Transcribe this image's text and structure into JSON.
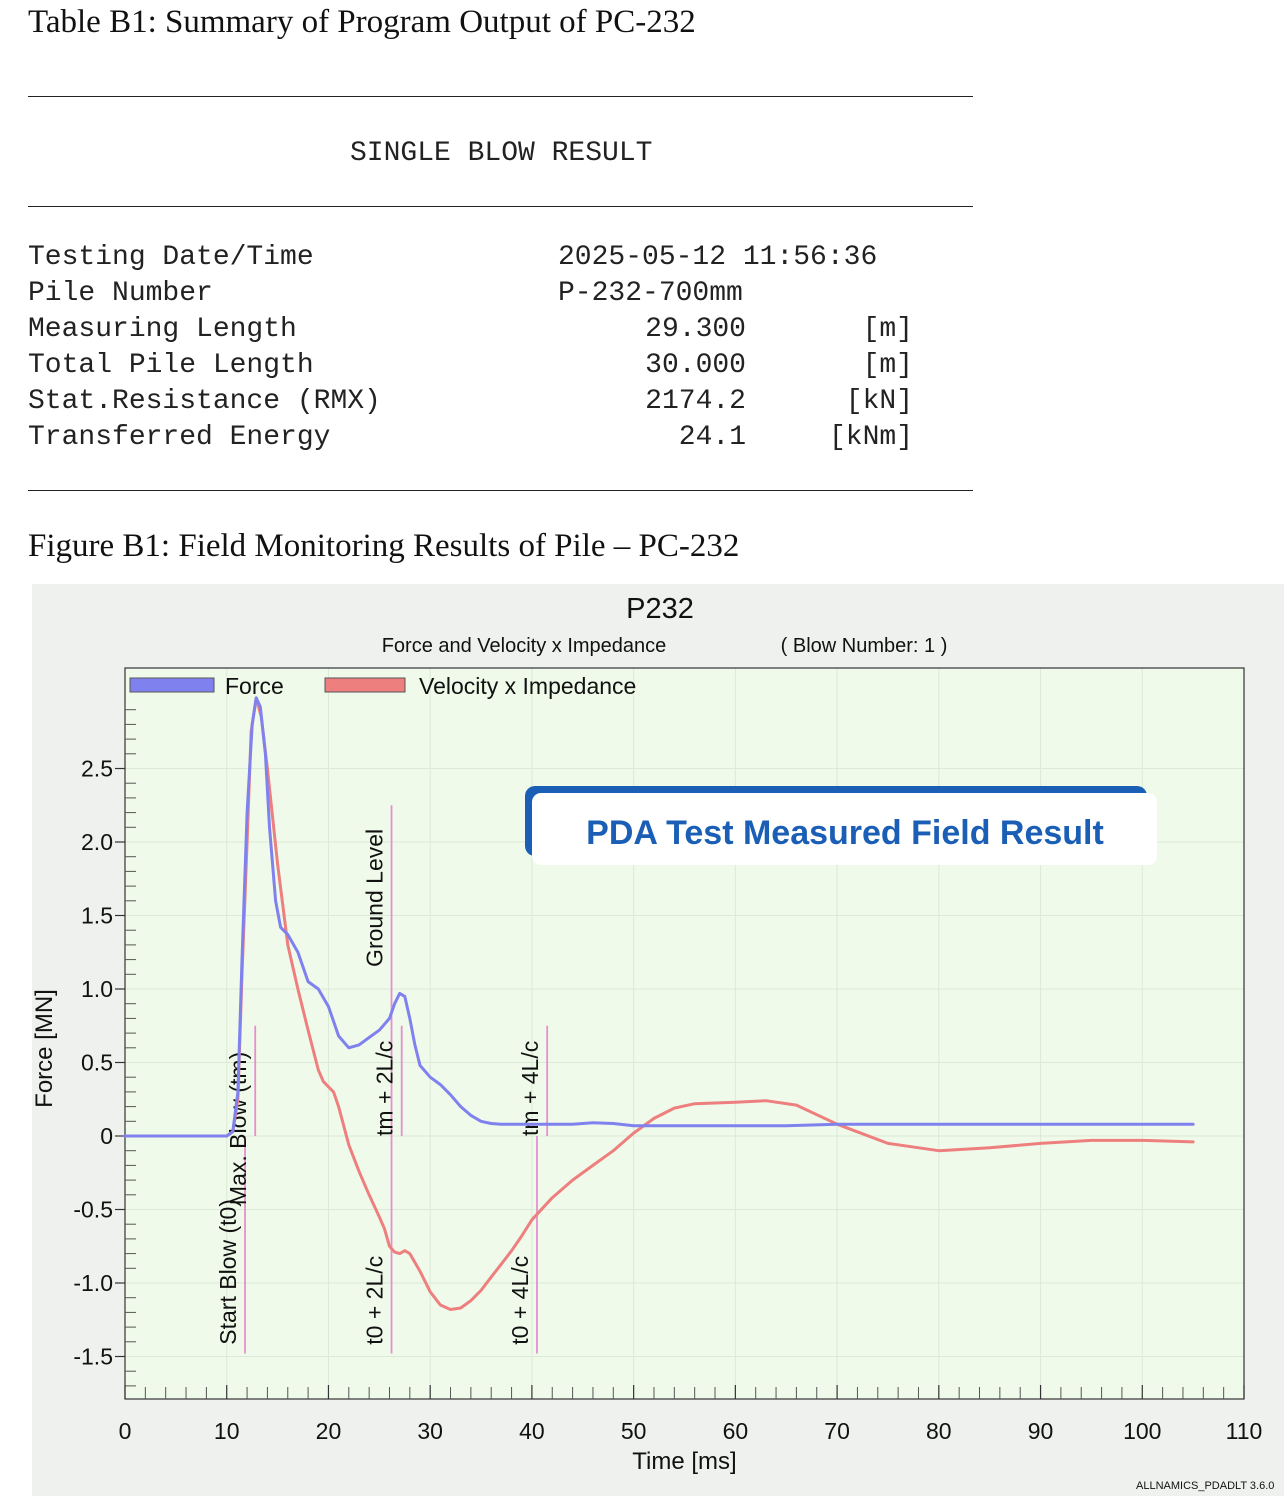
{
  "table": {
    "title": "Table B1: Summary of Program Output of PC-232",
    "heading": "SINGLE BLOW RESULT",
    "rows": [
      {
        "label": "Testing Date/Time",
        "value": "2025-05-12 11:56:36",
        "unit": ""
      },
      {
        "label": "Pile Number",
        "value": "P-232-700mm",
        "unit": ""
      },
      {
        "label": "Measuring Length",
        "value": "29.300",
        "unit": "[m]"
      },
      {
        "label": "Total Pile Length",
        "value": "30.000",
        "unit": "[m]"
      },
      {
        "label": "Stat.Resistance (RMX)",
        "value": "2174.2",
        "unit": "[kN]"
      },
      {
        "label": "Transferred Energy",
        "value": "24.1",
        "unit": "[kNm]"
      }
    ]
  },
  "figure": {
    "title": "Figure B1: Field Monitoring Results of Pile – PC-232",
    "banner": "PDA Test Measured Field Result",
    "software": "ALLNAMICS_PDADLT 3.6.0"
  },
  "chart_data": {
    "type": "line",
    "title": "P232",
    "subtitle": "Force and Velocity x Impedance",
    "blow_label": "( Blow Number: 1 )",
    "xlabel": "Time [ms]",
    "ylabel": "Force [MN]",
    "xlim": [
      0,
      110
    ],
    "ylim": [
      -1.8,
      3.0
    ],
    "x_ticks": [
      0,
      10,
      20,
      30,
      40,
      50,
      60,
      70,
      80,
      90,
      100,
      110
    ],
    "x_tick_labels": [
      "0",
      "10",
      "20",
      "30",
      "40",
      "50",
      "60",
      "70",
      "80",
      "90",
      "100",
      "110"
    ],
    "y_ticks": [
      -1.5,
      -1.0,
      -0.5,
      0,
      0.5,
      1.0,
      1.5,
      2.0,
      2.5
    ],
    "y_tick_labels": [
      "-1.5",
      "-1.0",
      "-0.5",
      "0",
      "0.5",
      "1.0",
      "1.5",
      "2.0",
      "2.5"
    ],
    "legend": "top-left",
    "colors": {
      "force": "#7f82ee",
      "velocity": "#ee7f7f",
      "marker": "#e68fd0",
      "plot_bg": "#effaea",
      "outer_bg": "#eff1ef",
      "banner": "#1a5fb5"
    },
    "series": [
      {
        "name": "Force",
        "x": [
          0,
          10,
          10.6,
          11.1,
          11.5,
          12,
          12.5,
          12.9,
          13.3,
          13.8,
          14.2,
          14.8,
          15.3,
          16,
          17,
          18,
          19,
          20,
          21,
          22,
          23,
          24,
          25,
          26,
          26.5,
          27,
          27.5,
          28,
          28.5,
          29,
          30,
          31,
          32,
          33,
          34,
          35,
          36,
          37,
          38,
          40,
          42,
          44,
          46,
          48,
          50,
          55,
          60,
          65,
          70,
          80,
          90,
          100,
          105
        ],
        "y": [
          0,
          0,
          0.03,
          0.3,
          1.2,
          2.2,
          2.8,
          2.98,
          2.92,
          2.6,
          2.1,
          1.6,
          1.42,
          1.37,
          1.25,
          1.05,
          1.0,
          0.88,
          0.68,
          0.6,
          0.62,
          0.67,
          0.72,
          0.8,
          0.9,
          0.97,
          0.95,
          0.8,
          0.62,
          0.48,
          0.4,
          0.35,
          0.28,
          0.2,
          0.14,
          0.1,
          0.085,
          0.08,
          0.08,
          0.08,
          0.08,
          0.08,
          0.09,
          0.085,
          0.07,
          0.07,
          0.07,
          0.07,
          0.08,
          0.08,
          0.08,
          0.08,
          0.08
        ]
      },
      {
        "name": "Velocity x Impedance",
        "x": [
          0,
          10,
          10.6,
          11.1,
          11.5,
          12,
          12.4,
          12.9,
          13.4,
          14,
          15,
          16,
          17,
          18,
          19,
          19.5,
          20.5,
          21,
          22,
          23,
          24,
          25,
          25.5,
          26,
          26.5,
          27,
          27.5,
          28,
          29,
          30,
          31,
          32,
          33,
          34,
          35,
          36,
          37,
          38,
          39,
          40,
          42,
          44,
          46,
          48,
          50,
          52,
          54,
          56,
          60,
          63,
          66,
          70,
          75,
          80,
          85,
          90,
          95,
          100,
          105
        ],
        "y": [
          0,
          0,
          0.03,
          0.25,
          1.1,
          2.0,
          2.75,
          2.98,
          2.85,
          2.5,
          1.85,
          1.3,
          1.0,
          0.72,
          0.45,
          0.37,
          0.3,
          0.2,
          -0.06,
          -0.24,
          -0.4,
          -0.55,
          -0.63,
          -0.75,
          -0.79,
          -0.8,
          -0.78,
          -0.8,
          -0.92,
          -1.06,
          -1.15,
          -1.18,
          -1.17,
          -1.12,
          -1.05,
          -0.96,
          -0.87,
          -0.78,
          -0.68,
          -0.57,
          -0.42,
          -0.3,
          -0.2,
          -0.1,
          0.02,
          0.12,
          0.19,
          0.22,
          0.23,
          0.24,
          0.21,
          0.08,
          -0.05,
          -0.1,
          -0.08,
          -0.05,
          -0.03,
          -0.03,
          -0.04
        ]
      }
    ],
    "markers": [
      {
        "label": "Start Blow (t0)",
        "x": 11.8,
        "y_from": -1.48,
        "y_to": 0.0,
        "text_y": -1.42
      },
      {
        "label": "Max. Blow (tm)",
        "x": 12.8,
        "y_from": 0.0,
        "y_to": 0.75,
        "text_y": -0.47
      },
      {
        "label": "t0 + 2L/c",
        "x": 26.2,
        "y_from": -1.48,
        "y_to": 0.0,
        "text_y": -1.42
      },
      {
        "label": "Ground Level",
        "x": 26.2,
        "y_from": 0.0,
        "y_to": 2.25,
        "text_y": 1.15
      },
      {
        "label": "tm + 2L/c",
        "x": 27.2,
        "y_from": 0.0,
        "y_to": 0.75,
        "text_y": 0.0
      },
      {
        "label": "t0 + 4L/c",
        "x": 40.5,
        "y_from": -1.48,
        "y_to": 0.0,
        "text_y": -1.42
      },
      {
        "label": "tm + 4L/c",
        "x": 41.5,
        "y_from": 0.0,
        "y_to": 0.75,
        "text_y": 0.0
      }
    ]
  }
}
